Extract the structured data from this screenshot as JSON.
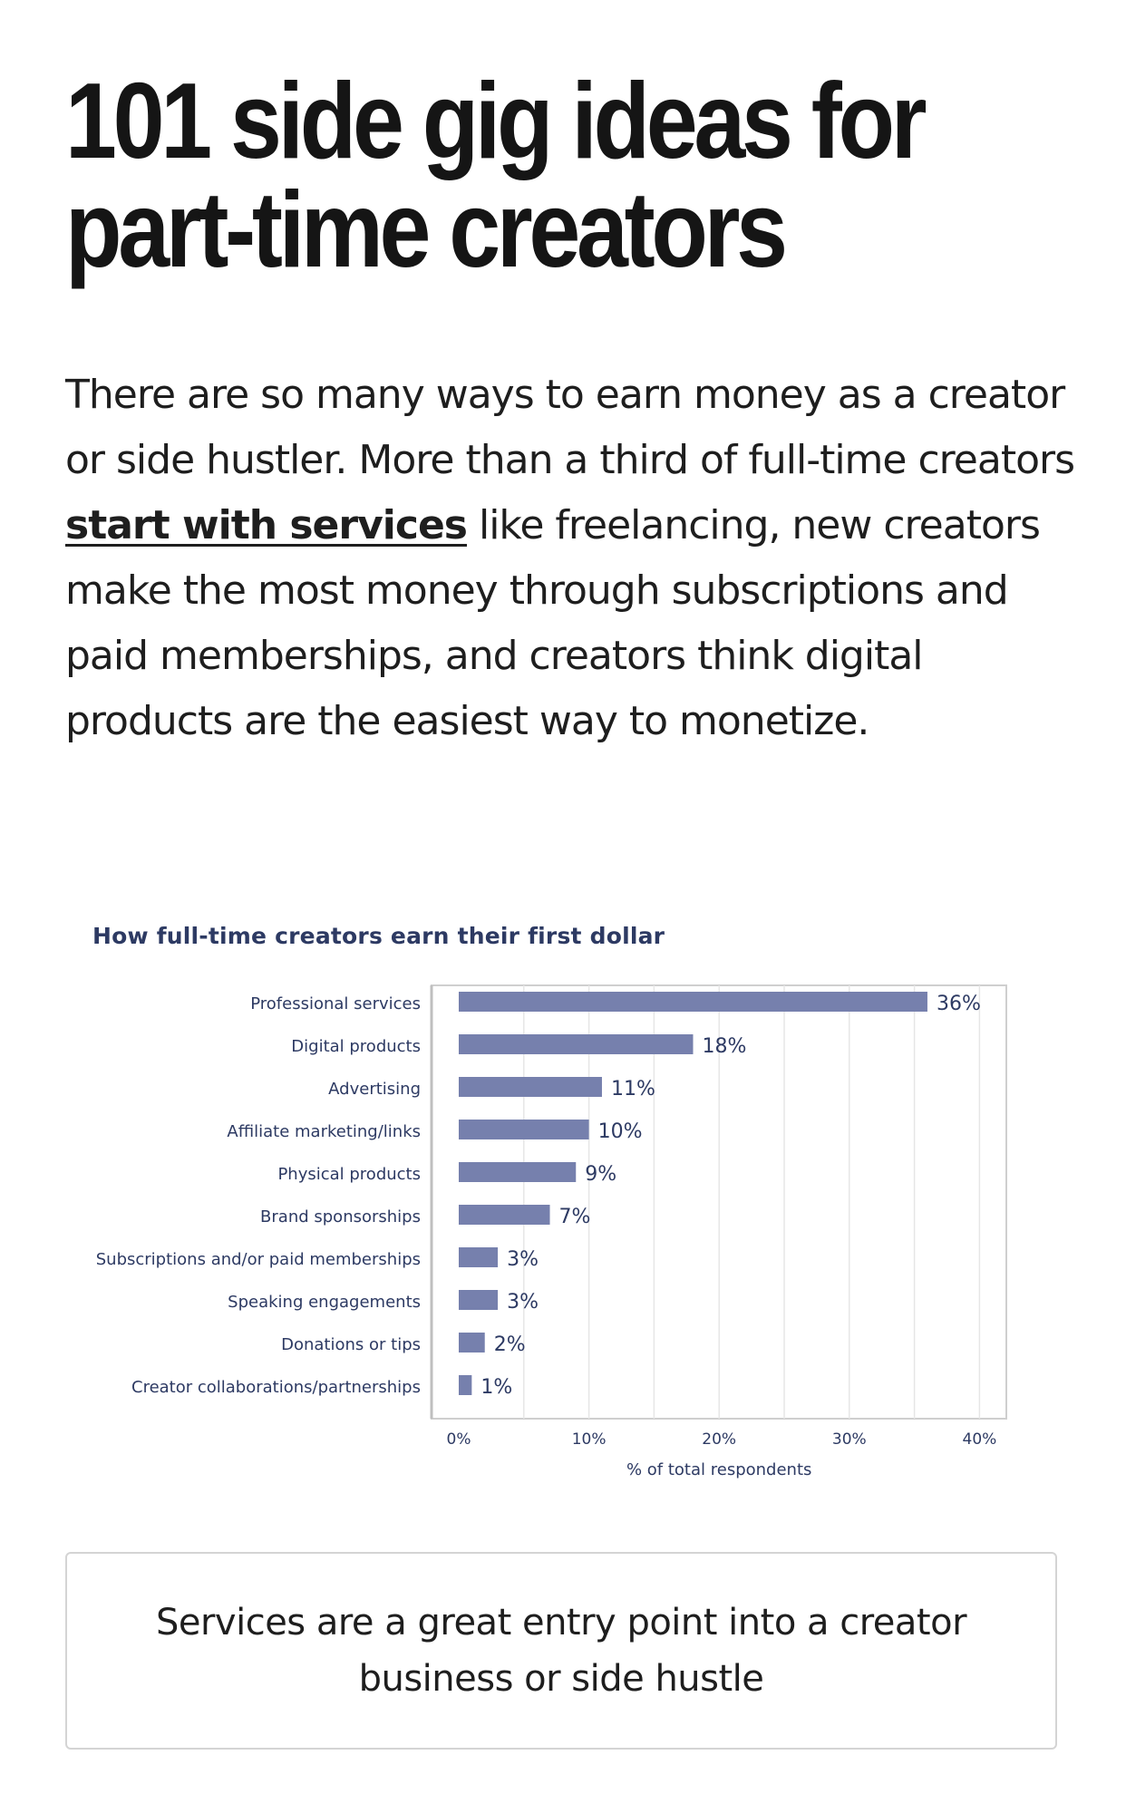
{
  "article": {
    "title": "101 side gig ideas for part-time creators",
    "intro_before_link": "There are so many ways to earn money as a creator or side hustler. More than a third of full-time creators ",
    "intro_link": "start with services",
    "intro_after_link": " like freelancing, new creators make the most money through subscriptions and paid memberships, and creators think digital products are the easiest way to monetize.",
    "callout": "Services are a great entry point into a creator business or side hustle"
  },
  "colors": {
    "bar": "#7680ad",
    "chart_title": "#2d3a63",
    "axis_text": "#2d3a63",
    "grid": "#e6e6e6",
    "frame": "#cfcfcf"
  },
  "chart_data": {
    "type": "bar",
    "orientation": "horizontal",
    "title": "How full-time creators earn their first dollar",
    "xlabel": "% of total respondents",
    "ylabel": "",
    "categories": [
      "Professional services",
      "Digital products",
      "Advertising",
      "Affiliate marketing/links",
      "Physical products",
      "Brand sponsorships",
      "Subscriptions and/or paid memberships",
      "Speaking engagements",
      "Donations or tips",
      "Creator collaborations/partnerships"
    ],
    "values": [
      36,
      18,
      11,
      10,
      9,
      7,
      3,
      3,
      2,
      1
    ],
    "value_labels": [
      "36%",
      "18%",
      "11%",
      "10%",
      "9%",
      "7%",
      "3%",
      "3%",
      "2%",
      "1%"
    ],
    "xlim": [
      0,
      40
    ],
    "xticks": [
      0,
      10,
      20,
      30,
      40
    ],
    "xtick_labels": [
      "0%",
      "10%",
      "20%",
      "30%",
      "40%"
    ],
    "grid": true,
    "legend": "none"
  }
}
